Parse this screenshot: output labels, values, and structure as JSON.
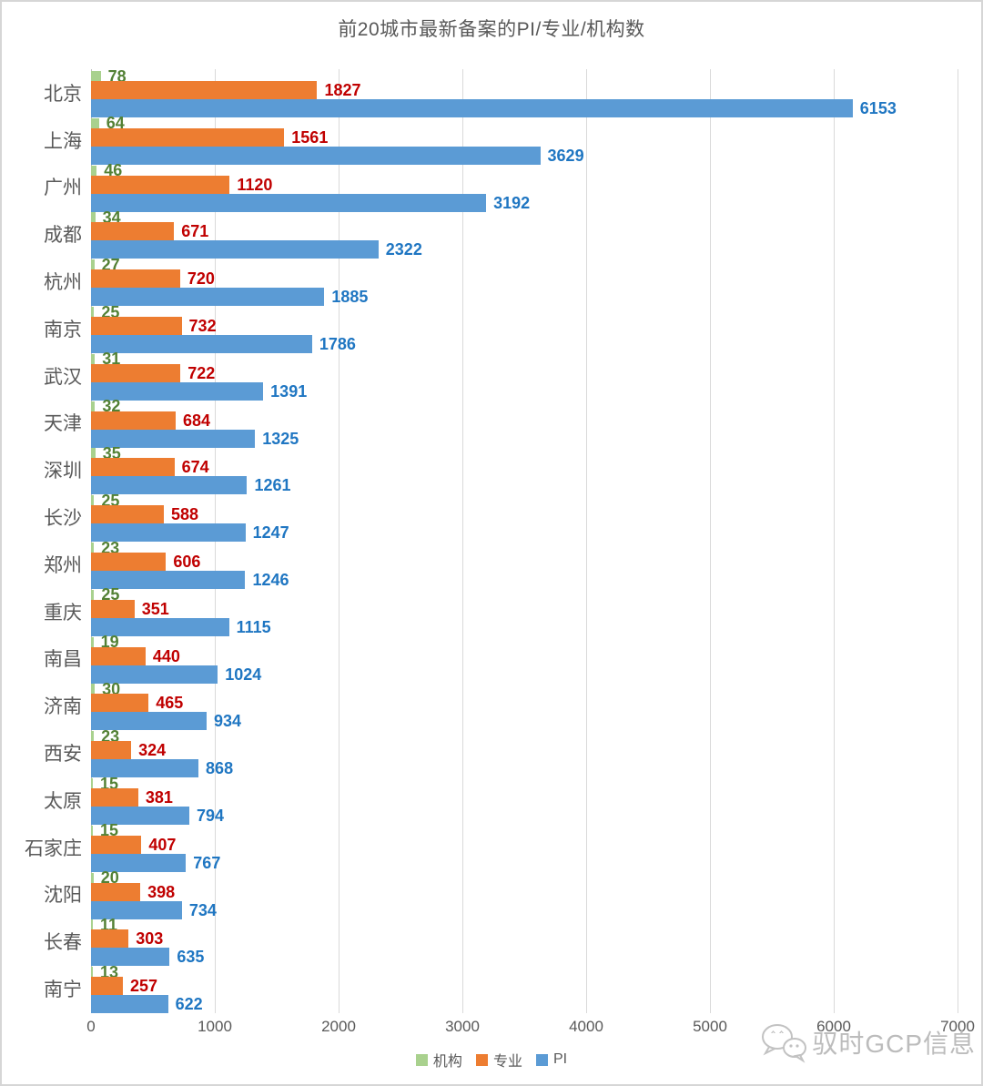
{
  "title": "前20城市最新备案的PI/专业/机构数",
  "chart_data": {
    "type": "bar",
    "orientation": "horizontal",
    "title": "前20城市最新备案的PI/专业/机构数",
    "categories": [
      "北京",
      "上海",
      "广州",
      "成都",
      "杭州",
      "南京",
      "武汉",
      "天津",
      "深圳",
      "长沙",
      "郑州",
      "重庆",
      "南昌",
      "济南",
      "西安",
      "太原",
      "石家庄",
      "沈阳",
      "长春",
      "南宁"
    ],
    "series": [
      {
        "name": "机构",
        "color": "#A9D18E",
        "label_color": "#538135",
        "values": [
          78,
          64,
          46,
          34,
          27,
          25,
          31,
          32,
          35,
          25,
          23,
          25,
          19,
          30,
          23,
          15,
          15,
          20,
          11,
          13
        ]
      },
      {
        "name": "专业",
        "color": "#ED7D31",
        "label_color": "#C00000",
        "values": [
          1827,
          1561,
          1120,
          671,
          720,
          732,
          722,
          684,
          674,
          588,
          606,
          351,
          440,
          465,
          324,
          381,
          407,
          398,
          303,
          257
        ]
      },
      {
        "name": "PI",
        "color": "#5B9BD5",
        "label_color": "#1F76C2",
        "values": [
          6153,
          3629,
          3192,
          2322,
          1885,
          1786,
          1391,
          1325,
          1261,
          1247,
          1246,
          1115,
          1024,
          934,
          868,
          794,
          767,
          734,
          635,
          622
        ]
      }
    ],
    "xlim": [
      0,
      7000
    ],
    "x_ticks": [
      "0",
      "1000",
      "2000",
      "3000",
      "4000",
      "5000",
      "6000",
      "7000"
    ],
    "grid": true,
    "legend_position": "bottom",
    "gridline_color": "#d9d9d9",
    "text_color": "#595959"
  },
  "watermark": {
    "text": "驭时GCP信息",
    "icon": "wechat-icon"
  }
}
